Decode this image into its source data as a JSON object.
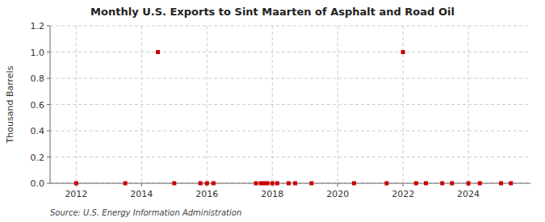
{
  "chart_data": {
    "type": "scatter",
    "title": "Monthly U.S. Exports to Sint Maarten of Asphalt and Road Oil",
    "ylabel": "Thousand Barrels",
    "source": "Source: U.S. Energy Information Administration",
    "x": [
      2012.0,
      2013.5,
      2014.5,
      2015.0,
      2015.8,
      2016.0,
      2016.2,
      2017.5,
      2017.65,
      2017.75,
      2017.85,
      2018.0,
      2018.15,
      2018.5,
      2018.7,
      2019.2,
      2020.5,
      2021.5,
      2022.0,
      2022.4,
      2022.7,
      2023.2,
      2023.5,
      2024.0,
      2024.35,
      2025.0,
      2025.3
    ],
    "values": [
      0.0,
      0.0,
      1.0,
      0.0,
      0.0,
      0.0,
      0.0,
      0.0,
      0.0,
      0.0,
      0.0,
      0.0,
      0.0,
      0.0,
      0.0,
      0.0,
      0.0,
      0.0,
      1.0,
      0.0,
      0.0,
      0.0,
      0.0,
      0.0,
      0.0,
      0.0,
      0.0
    ],
    "color": "#cc0000",
    "marker": "square",
    "xlim": [
      2011.2,
      2025.9
    ],
    "xticks": [
      2012,
      2014,
      2016,
      2018,
      2020,
      2022,
      2024
    ],
    "ylim": [
      0.0,
      1.2
    ],
    "yticks": [
      {
        "value": 0.0,
        "label": "0.0"
      },
      0.2,
      0.4,
      0.6,
      0.8,
      {
        "value": 1.0,
        "label": "1.0"
      },
      1.2
    ],
    "grid": true
  }
}
